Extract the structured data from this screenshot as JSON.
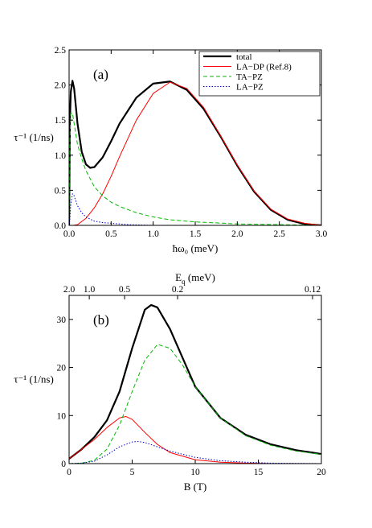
{
  "chart_data": [
    {
      "type": "line",
      "panel_label": "(a)",
      "xlabel": "ħω₀ (meV)",
      "ylabel": "τ⁻¹ (1/ns)",
      "xlim": [
        0,
        3.0
      ],
      "ylim": [
        0,
        2.5
      ],
      "xticks": [
        0.0,
        0.5,
        1.0,
        1.5,
        2.0,
        2.5,
        3.0
      ],
      "xtick_labels": [
        "0.0",
        "0.5",
        "1.0",
        "1.5",
        "2.0",
        "2.5",
        "3.0"
      ],
      "yticks": [
        0.0,
        0.5,
        1.0,
        1.5,
        2.0,
        2.5
      ],
      "ytick_labels": [
        "0.0",
        "0.5",
        "1.0",
        "1.5",
        "2.0",
        "2.5"
      ],
      "legend_position": "top-right",
      "series": [
        {
          "name": "total",
          "color": "#000000",
          "style": "solid-thick",
          "x": [
            0,
            0.01,
            0.02,
            0.04,
            0.06,
            0.08,
            0.1,
            0.15,
            0.2,
            0.25,
            0.3,
            0.4,
            0.5,
            0.6,
            0.8,
            1.0,
            1.2,
            1.4,
            1.6,
            1.8,
            2.0,
            2.2,
            2.4,
            2.6,
            2.8,
            3.0
          ],
          "y": [
            0,
            1.5,
            1.9,
            2.06,
            1.95,
            1.7,
            1.45,
            1.05,
            0.87,
            0.82,
            0.83,
            0.97,
            1.2,
            1.45,
            1.82,
            2.02,
            2.05,
            1.93,
            1.66,
            1.27,
            0.85,
            0.48,
            0.22,
            0.08,
            0.02,
            0.0
          ]
        },
        {
          "name": "LA−DP (Ref.8)",
          "color": "#ff0000",
          "style": "solid",
          "x": [
            0,
            0.05,
            0.1,
            0.2,
            0.3,
            0.4,
            0.5,
            0.6,
            0.8,
            1.0,
            1.2,
            1.4,
            1.6,
            1.8,
            2.0,
            2.2,
            2.4,
            2.6,
            2.8,
            3.0
          ],
          "y": [
            0,
            0.0,
            0.01,
            0.1,
            0.25,
            0.45,
            0.7,
            0.98,
            1.5,
            1.88,
            2.04,
            1.95,
            1.68,
            1.28,
            0.86,
            0.49,
            0.23,
            0.09,
            0.03,
            0.0
          ]
        },
        {
          "name": "TA−PZ",
          "color": "#00bb00",
          "style": "dashed",
          "x": [
            0,
            0.01,
            0.02,
            0.04,
            0.06,
            0.08,
            0.1,
            0.15,
            0.2,
            0.3,
            0.4,
            0.5,
            0.6,
            0.8,
            1.0,
            1.2,
            1.5,
            2.0,
            2.5,
            3.0
          ],
          "y": [
            0,
            1.2,
            1.6,
            1.6,
            1.45,
            1.3,
            1.15,
            0.95,
            0.78,
            0.55,
            0.42,
            0.33,
            0.27,
            0.18,
            0.12,
            0.08,
            0.05,
            0.02,
            0.01,
            0.0
          ]
        },
        {
          "name": "LA−PZ",
          "color": "#0000cc",
          "style": "dotted",
          "x": [
            0,
            0.01,
            0.02,
            0.04,
            0.06,
            0.08,
            0.1,
            0.15,
            0.2,
            0.3,
            0.4,
            0.5,
            0.7,
            1.0,
            1.5,
            2.0,
            3.0
          ],
          "y": [
            0,
            0.1,
            0.3,
            0.45,
            0.42,
            0.35,
            0.28,
            0.18,
            0.12,
            0.06,
            0.04,
            0.03,
            0.01,
            0.0,
            0.0,
            0.0,
            0.0
          ]
        }
      ]
    },
    {
      "type": "line",
      "panel_label": "(b)",
      "xlabel": "B (T)",
      "ylabel": "τ⁻¹ (1/ns)",
      "top_xlabel": "E",
      "top_xlabel_sub": "q",
      "top_xlabel_unit": " (meV)",
      "xlim": [
        0,
        20
      ],
      "ylim": [
        0,
        35
      ],
      "xticks": [
        0,
        5,
        10,
        15,
        20
      ],
      "xtick_labels": [
        "0",
        "5",
        "10",
        "15",
        "20"
      ],
      "yticks": [
        0,
        10,
        20,
        30
      ],
      "ytick_labels": [
        "0",
        "10",
        "20",
        "30"
      ],
      "top_ticks_at_B": [
        0,
        1.6,
        4.4,
        8.6,
        19.3
      ],
      "top_tick_labels": [
        "2.0",
        "1.0",
        "0.5",
        "0.2",
        "0.12"
      ],
      "series": [
        {
          "name": "total",
          "color": "#000000",
          "style": "solid-thick",
          "x": [
            0,
            1,
            2,
            3,
            4,
            5,
            6,
            6.5,
            7,
            8,
            9,
            10,
            12,
            14,
            16,
            18,
            20
          ],
          "y": [
            1,
            3,
            5.5,
            9,
            15,
            24,
            32,
            33,
            32.5,
            28,
            22,
            16,
            9.5,
            6,
            4,
            2.8,
            2
          ]
        },
        {
          "name": "LA−DP (Ref.8)",
          "color": "#ff0000",
          "style": "solid",
          "x": [
            0,
            1,
            2,
            3,
            4,
            4.5,
            5,
            6,
            7,
            8,
            10,
            12,
            14,
            16,
            20
          ],
          "y": [
            1,
            3,
            5,
            7.5,
            9.5,
            9.8,
            9.2,
            6.5,
            4,
            2.3,
            0.8,
            0.3,
            0.1,
            0.0,
            0.0
          ]
        },
        {
          "name": "TA−PZ",
          "color": "#00bb00",
          "style": "dashed",
          "x": [
            0,
            1,
            2,
            3,
            4,
            5,
            6,
            7,
            8,
            9,
            10,
            12,
            14,
            16,
            18,
            20
          ],
          "y": [
            0,
            0.1,
            0.7,
            3,
            8,
            15,
            21.5,
            24.8,
            24,
            20.5,
            16,
            9.5,
            5.8,
            3.8,
            2.6,
            1.9
          ]
        },
        {
          "name": "LA−PZ",
          "color": "#0000cc",
          "style": "dotted",
          "x": [
            0,
            1,
            2,
            3,
            4,
            5,
            5.5,
            6,
            7,
            8,
            10,
            12,
            14,
            16,
            20
          ],
          "y": [
            0,
            0.1,
            0.5,
            1.8,
            3.5,
            4.5,
            4.6,
            4.4,
            3.5,
            2.6,
            1.3,
            0.6,
            0.3,
            0.1,
            0.0
          ]
        }
      ]
    }
  ]
}
